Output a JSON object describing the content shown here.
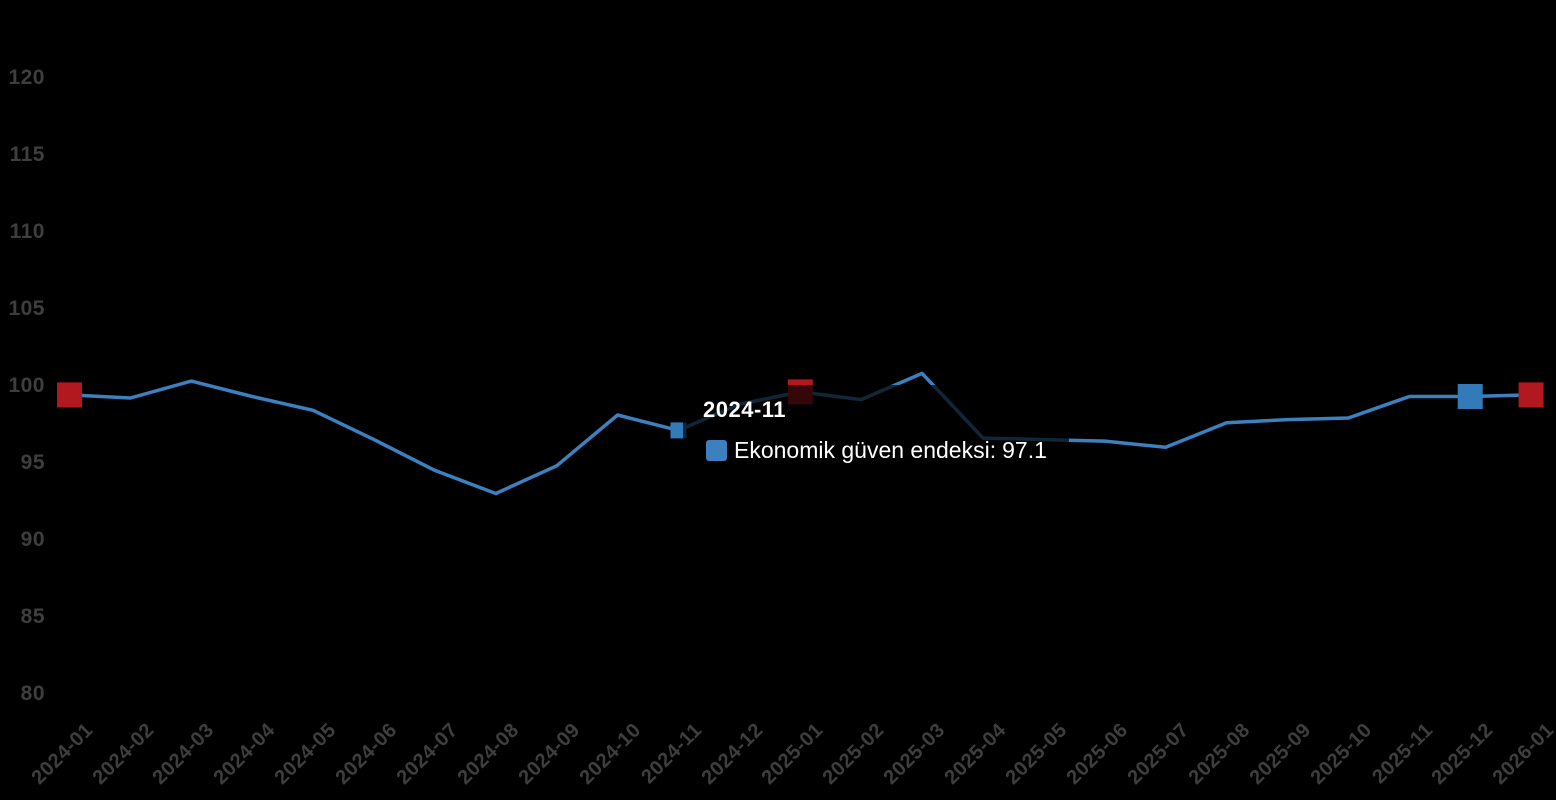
{
  "chart_data": {
    "type": "line",
    "title": "",
    "xlabel": "",
    "ylabel": "",
    "categories": [
      "2024-01",
      "2024-02",
      "2024-03",
      "2024-04",
      "2024-05",
      "2024-06",
      "2024-07",
      "2024-08",
      "2024-09",
      "2024-10",
      "2024-11",
      "2024-12",
      "2025-01",
      "2025-02",
      "2025-03",
      "2025-04",
      "2025-05",
      "2025-06",
      "2025-07",
      "2025-08",
      "2025-09",
      "2025-10",
      "2025-11",
      "2025-12",
      "2026-01"
    ],
    "series": [
      {
        "name": "Ekonomik güven endeksi",
        "color": "#3c80c0",
        "values": [
          99.4,
          99.2,
          100.3,
          99.3,
          98.4,
          96.5,
          94.5,
          93.0,
          94.8,
          98.1,
          97.1,
          98.8,
          99.6,
          99.1,
          100.8,
          96.6,
          96.5,
          96.4,
          96.0,
          97.6,
          97.8,
          97.9,
          99.3,
          99.3,
          99.4
        ]
      }
    ],
    "ylim": [
      80,
      120
    ],
    "yticks": [
      120,
      115,
      110,
      105,
      100,
      95,
      90,
      85,
      80
    ],
    "grid": false,
    "legend_position": "none",
    "axis_label_color": "#3e3e3e",
    "background_color": "#000000",
    "highlight_markers": [
      {
        "category": "2024-01",
        "shape": "square",
        "size": 25,
        "color": "#b1181f"
      },
      {
        "category": "2025-01",
        "shape": "square",
        "size": 25,
        "color": "#b1181f"
      },
      {
        "category": "2025-12",
        "shape": "square",
        "size": 25,
        "color": "#337ab8"
      },
      {
        "category": "2026-01",
        "shape": "square",
        "size": 25,
        "color": "#b1181f"
      },
      {
        "category": "2024-11",
        "shape": "square",
        "size": 16,
        "color": "#337ab8"
      }
    ]
  },
  "tooltip": {
    "title": "2024-11",
    "series_label": "Ekonomik güven endeksi:",
    "value": "97.1",
    "marker_color": "#3c80c0",
    "text_color": "#ffffff"
  }
}
